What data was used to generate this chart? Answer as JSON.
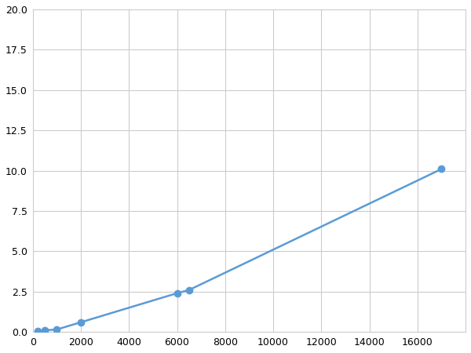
{
  "x": [
    200,
    500,
    1000,
    2000,
    6000,
    6500,
    17000
  ],
  "y": [
    0.05,
    0.1,
    0.15,
    0.6,
    2.4,
    2.6,
    10.1
  ],
  "line_color": "#5b9bd5",
  "marker_color": "#5b9bd5",
  "marker_size": 6,
  "line_width": 1.8,
  "xlim": [
    0,
    18000
  ],
  "ylim": [
    0,
    20
  ],
  "xticks": [
    0,
    2000,
    4000,
    6000,
    8000,
    10000,
    12000,
    14000,
    16000
  ],
  "yticks": [
    0.0,
    2.5,
    5.0,
    7.5,
    10.0,
    12.5,
    15.0,
    17.5,
    20.0
  ],
  "grid": true,
  "background_color": "#ffffff",
  "figsize": [
    6.0,
    4.5
  ],
  "dpi": 100
}
